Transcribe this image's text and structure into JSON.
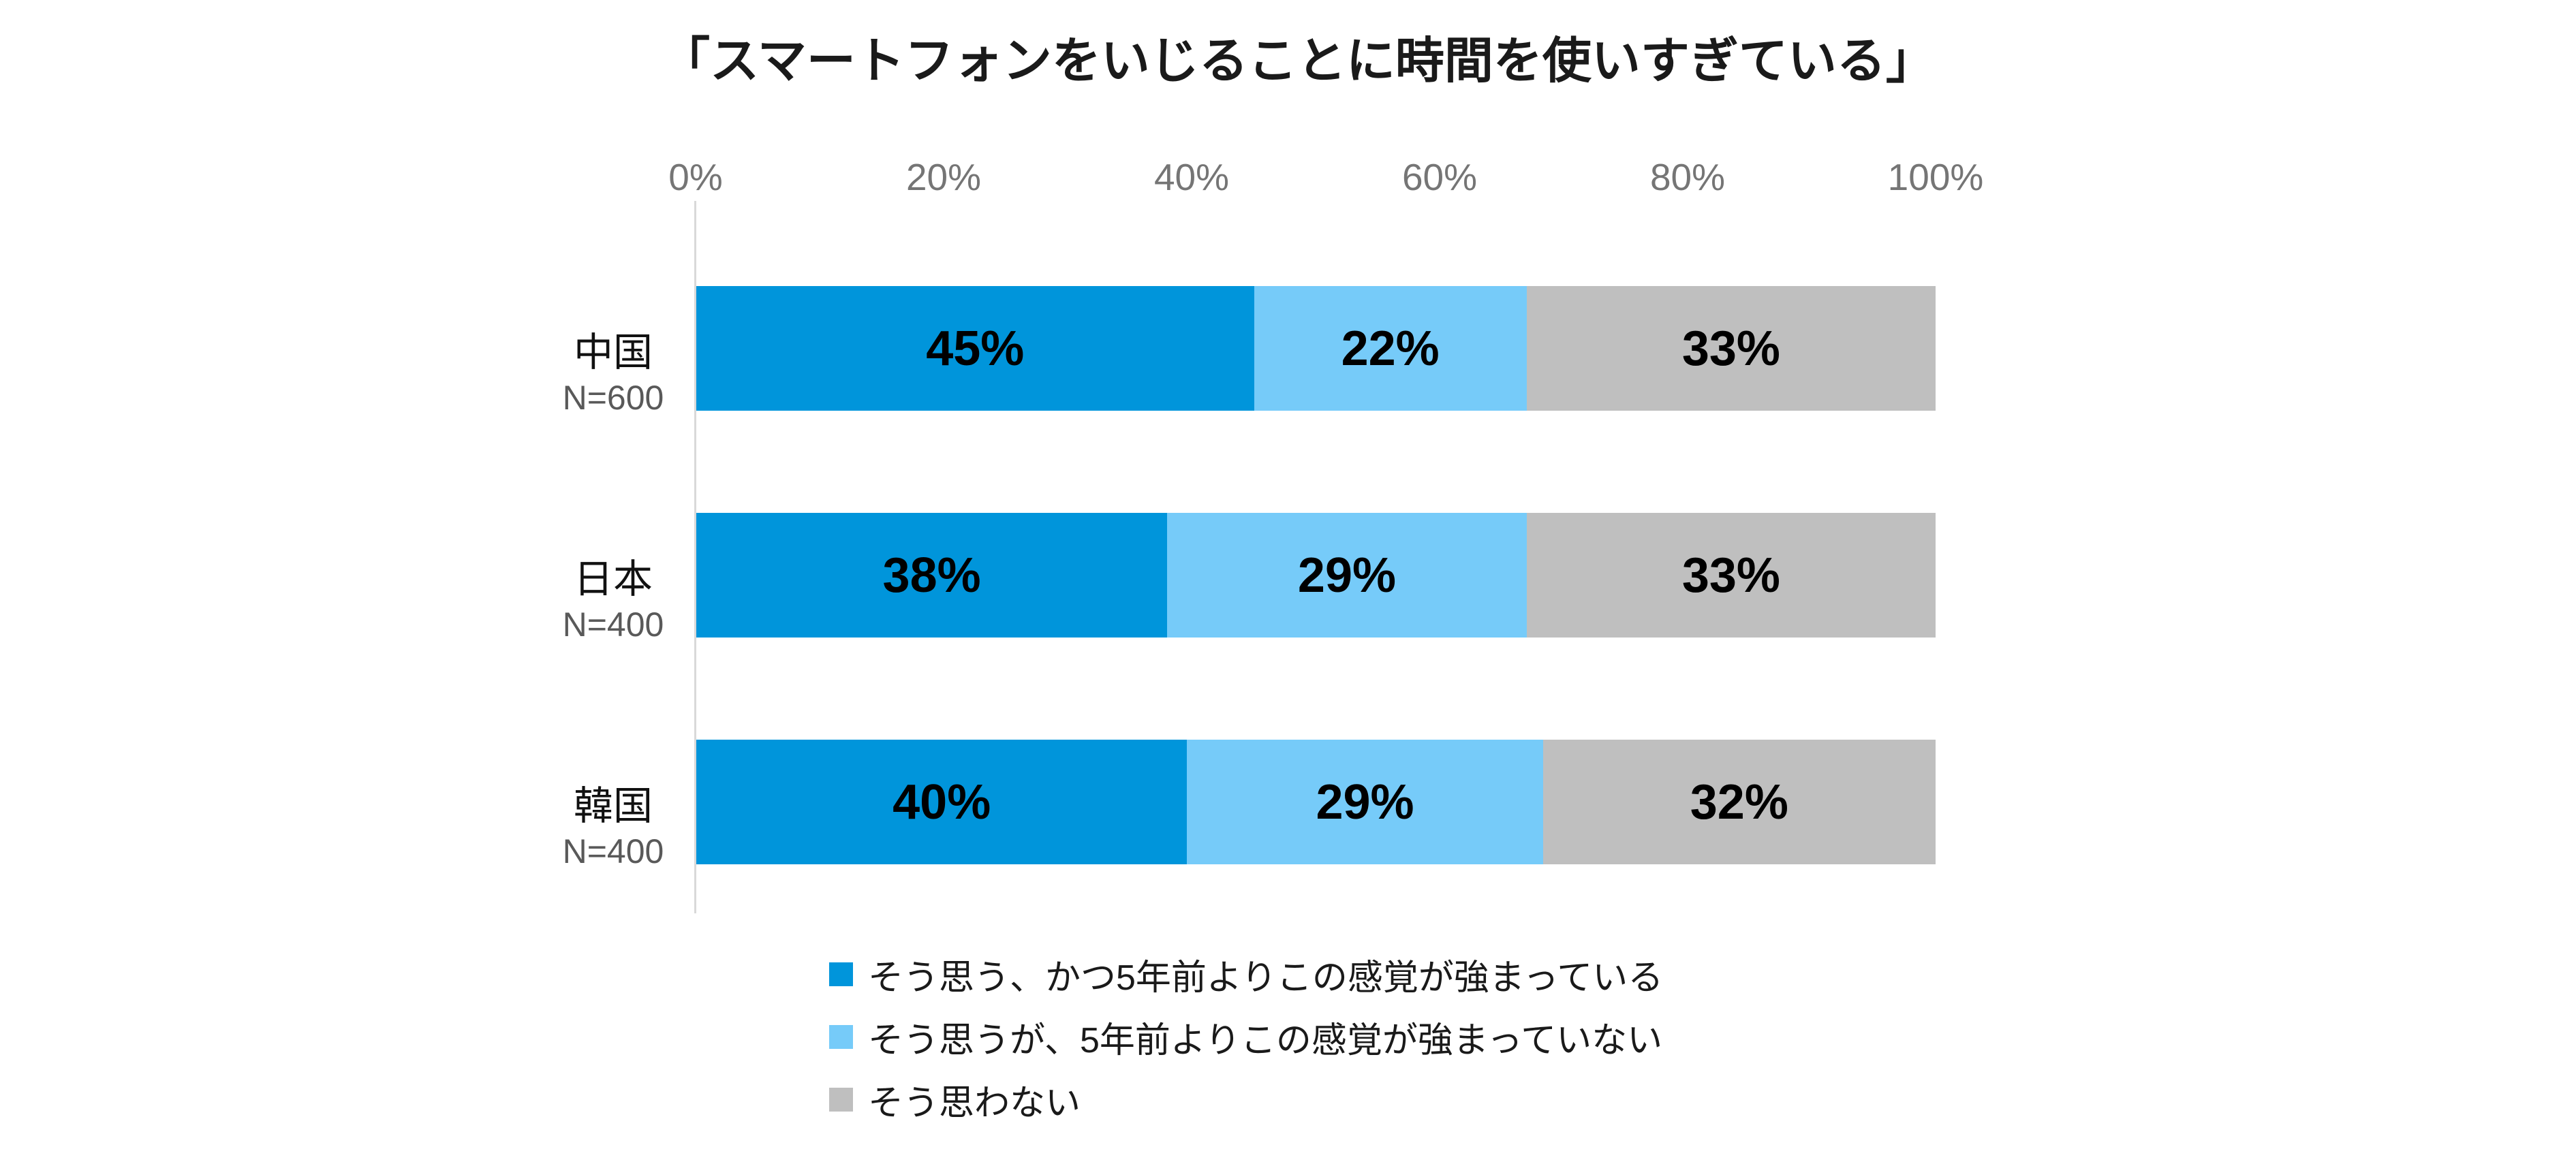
{
  "title": "「スマートフォンをいじることに時間を使いすぎている」",
  "chart_data": {
    "type": "bar",
    "stacked": true,
    "orientation": "horizontal",
    "title": "「スマートフォンをいじることに時間を使いすぎている」",
    "categories": [
      "中国",
      "日本",
      "韓国"
    ],
    "category_sublabels": [
      "N=600",
      "N=400",
      "N=400"
    ],
    "series": [
      {
        "name": "そう思う、かつ5年前よりこの感覚が強まっている",
        "color": "#0095db",
        "values": [
          45,
          38,
          40
        ]
      },
      {
        "name": "そう思うが、5年前よりこの感覚が強まっていない",
        "color": "#76cbf9",
        "values": [
          22,
          29,
          29
        ]
      },
      {
        "name": "そう思わない",
        "color": "#bfbfbf",
        "values": [
          33,
          33,
          32
        ]
      }
    ],
    "value_suffix": "%",
    "x_ticks": [
      "0%",
      "20%",
      "40%",
      "60%",
      "80%",
      "100%"
    ],
    "xlim": [
      0,
      100
    ],
    "grid": false,
    "legend_position": "bottom",
    "colors": {
      "axis_line": "#d9d9d9",
      "tick_label": "#757575",
      "category_label": "#111111",
      "category_sublabel": "#595959",
      "value_label": "#000000",
      "title": "#1a1a1a",
      "background": "#ffffff"
    }
  }
}
